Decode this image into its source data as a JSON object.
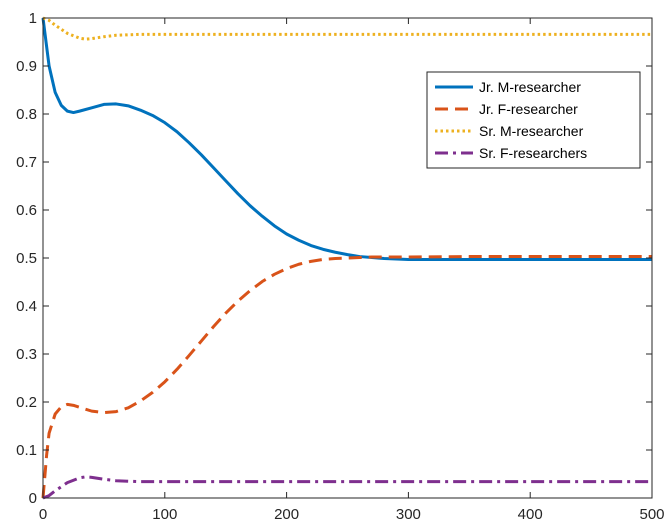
{
  "chart_data": {
    "type": "line",
    "title": "",
    "xlabel": "",
    "ylabel": "",
    "xlim": [
      0,
      500
    ],
    "ylim": [
      0,
      1
    ],
    "x_ticks": [
      "0",
      "100",
      "200",
      "300",
      "400",
      "500"
    ],
    "y_ticks": [
      "0",
      "0.1",
      "0.2",
      "0.3",
      "0.4",
      "0.5",
      "0.6",
      "0.7",
      "0.8",
      "0.9",
      "1"
    ],
    "grid": false,
    "legend_position": "top-right",
    "series": [
      {
        "name": "Jr. M-researcher",
        "color": "#0072BD",
        "style": "solid",
        "x": [
          0,
          5,
          10,
          15,
          20,
          25,
          30,
          40,
          50,
          60,
          70,
          80,
          90,
          100,
          110,
          120,
          130,
          140,
          150,
          160,
          170,
          180,
          190,
          200,
          210,
          220,
          230,
          240,
          250,
          260,
          270,
          280,
          290,
          300,
          350,
          400,
          450,
          500
        ],
        "values": [
          1.0,
          0.9,
          0.845,
          0.818,
          0.806,
          0.803,
          0.806,
          0.813,
          0.82,
          0.821,
          0.817,
          0.808,
          0.797,
          0.782,
          0.763,
          0.74,
          0.715,
          0.688,
          0.661,
          0.634,
          0.609,
          0.587,
          0.567,
          0.55,
          0.537,
          0.526,
          0.518,
          0.512,
          0.507,
          0.503,
          0.501,
          0.499,
          0.498,
          0.497,
          0.497,
          0.497,
          0.497,
          0.497
        ]
      },
      {
        "name": "Jr. F-researcher",
        "color": "#D95319",
        "style": "dashed",
        "x": [
          0,
          3,
          5,
          10,
          15,
          20,
          25,
          30,
          40,
          50,
          60,
          70,
          80,
          90,
          100,
          110,
          120,
          130,
          140,
          150,
          160,
          170,
          180,
          190,
          200,
          210,
          220,
          230,
          240,
          250,
          260,
          270,
          280,
          290,
          300,
          350,
          400,
          450,
          500
        ],
        "values": [
          0.0,
          0.09,
          0.135,
          0.175,
          0.19,
          0.195,
          0.193,
          0.189,
          0.181,
          0.178,
          0.18,
          0.188,
          0.202,
          0.22,
          0.242,
          0.268,
          0.297,
          0.327,
          0.357,
          0.385,
          0.41,
          0.432,
          0.451,
          0.466,
          0.478,
          0.487,
          0.493,
          0.497,
          0.499,
          0.5,
          0.501,
          0.502,
          0.502,
          0.502,
          0.502,
          0.503,
          0.503,
          0.503,
          0.503
        ]
      },
      {
        "name": "Sr. M-researcher",
        "color": "#EDB120",
        "style": "dotted",
        "x": [
          0,
          5,
          10,
          20,
          30,
          35,
          40,
          50,
          60,
          70,
          80,
          100,
          150,
          200,
          300,
          400,
          500
        ],
        "values": [
          1.0,
          0.995,
          0.985,
          0.968,
          0.958,
          0.956,
          0.957,
          0.961,
          0.964,
          0.965,
          0.966,
          0.966,
          0.966,
          0.966,
          0.966,
          0.966,
          0.966
        ]
      },
      {
        "name": "Sr. F-researchers",
        "color": "#7E2F8E",
        "style": "dashdot",
        "x": [
          0,
          5,
          10,
          20,
          30,
          35,
          40,
          50,
          60,
          70,
          80,
          100,
          150,
          200,
          300,
          400,
          500
        ],
        "values": [
          0.0,
          0.005,
          0.015,
          0.032,
          0.042,
          0.044,
          0.043,
          0.039,
          0.036,
          0.035,
          0.034,
          0.034,
          0.034,
          0.034,
          0.034,
          0.034,
          0.034
        ]
      }
    ]
  }
}
